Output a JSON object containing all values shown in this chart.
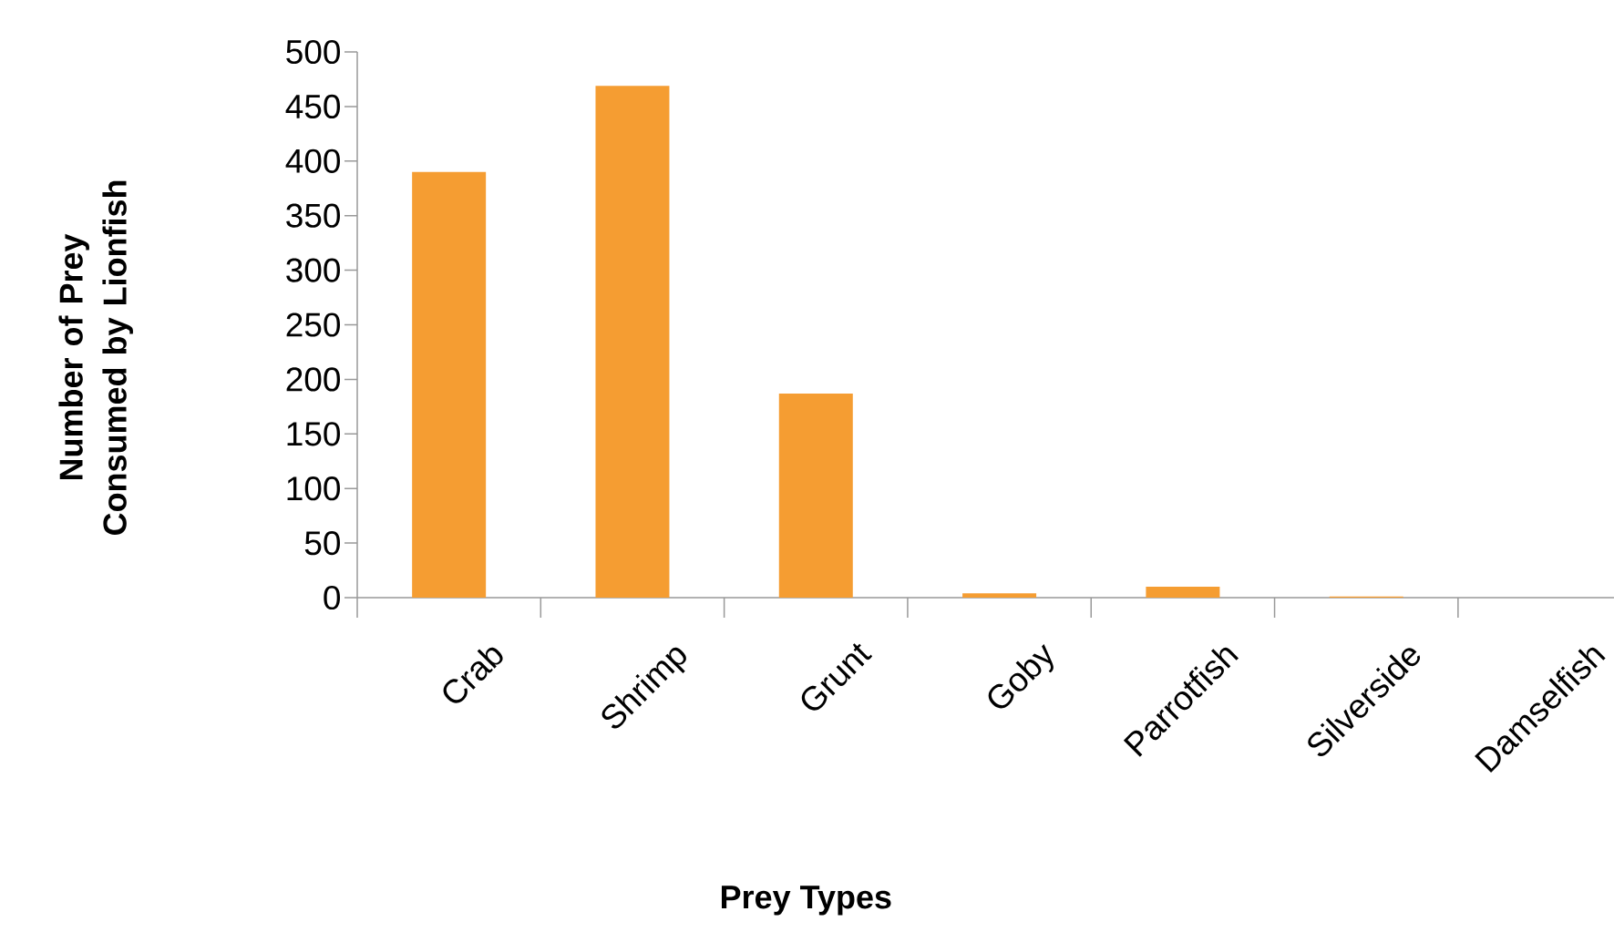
{
  "chart_data": {
    "type": "bar",
    "xlabel": "Prey Types",
    "ylabel": "Number of Prey Consumed by Lionfish",
    "categories": [
      "Crab",
      "Shrimp",
      "Grunt",
      "Goby",
      "Parrotfish",
      "Silverside",
      "Damselfish"
    ],
    "values": [
      390,
      469,
      187,
      4,
      10,
      1,
      0
    ],
    "color": "#f59d32",
    "ylim": [
      0,
      500
    ],
    "yticks": [
      0,
      50,
      100,
      150,
      200,
      250,
      300,
      350,
      400,
      450,
      500
    ]
  }
}
